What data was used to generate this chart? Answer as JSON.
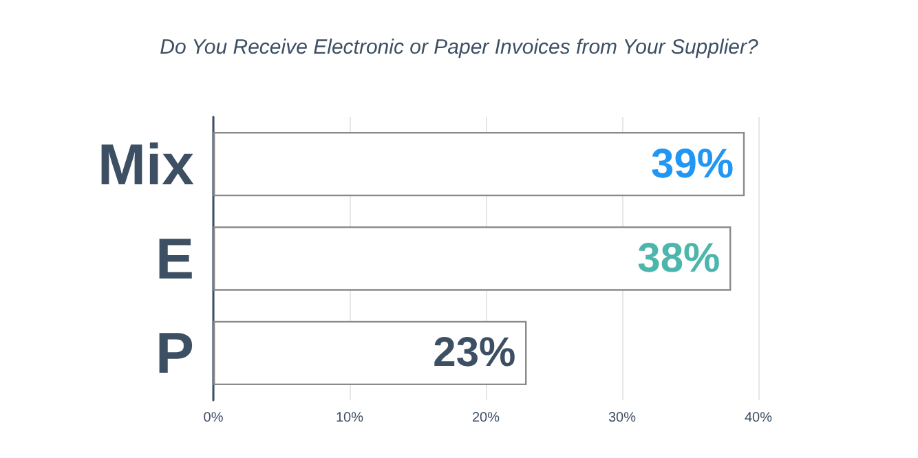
{
  "chart_data": {
    "type": "bar",
    "orientation": "horizontal",
    "title": "Do You Receive Electronic or Paper Invoices from Your Supplier?",
    "categories": [
      "Mix",
      "E",
      "P"
    ],
    "values": [
      39,
      38,
      23
    ],
    "value_labels": [
      "39%",
      "38%",
      "23%"
    ],
    "color": "#ffffff",
    "xlim": [
      0,
      40
    ],
    "xticks": [
      {
        "value": 0,
        "label": "0%"
      },
      {
        "value": 10,
        "label": "10%"
      },
      {
        "value": 20,
        "label": "20%"
      },
      {
        "value": 30,
        "label": "30%"
      },
      {
        "value": 40,
        "label": "40%"
      }
    ],
    "grid": "x"
  }
}
